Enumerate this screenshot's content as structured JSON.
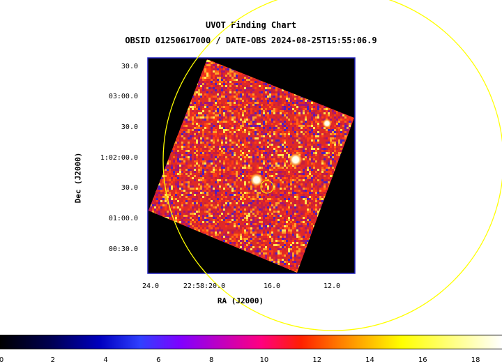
{
  "title": "UVOT Finding Chart",
  "subtitle": "OBSID 01250617000 / DATE-OBS 2024-08-25T15:55:06.9",
  "xlabel": "RA (J2000)",
  "ylabel": "Dec (J2000)",
  "ra_ticks": [
    "24.0",
    "22:58:20.0",
    "16.0",
    "12.0"
  ],
  "dec_ticks": [
    "30.0",
    "03:00.0",
    "30.0",
    "1:02:00.0",
    "30.0",
    "01:00.0",
    "00:30.0"
  ],
  "colorbar": {
    "ticks": [
      "0",
      "2",
      "4",
      "6",
      "8",
      "10",
      "12",
      "14",
      "16",
      "18"
    ],
    "range": [
      0,
      19
    ]
  },
  "colors": {
    "frame": "#2020c0",
    "overlay_circle": "#ffff00",
    "background": "#000000"
  }
}
